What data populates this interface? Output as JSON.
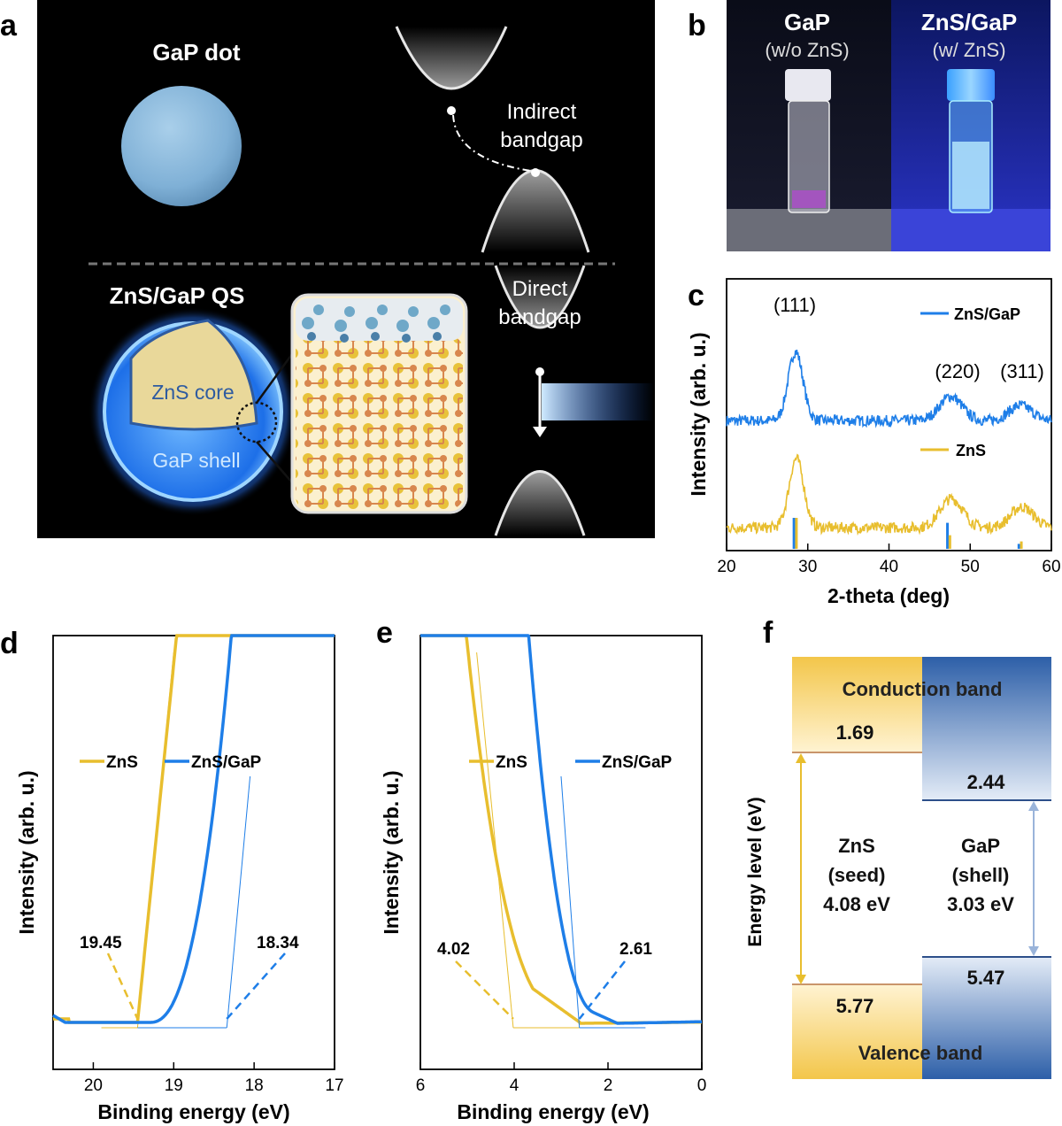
{
  "panel_labels": {
    "a": "a",
    "b": "b",
    "c": "c",
    "d": "d",
    "e": "e",
    "f": "f"
  },
  "colors": {
    "zns": "#E8BE2E",
    "gap": "#1E7EE8",
    "dark_bg": "#000000",
    "shell_glow": "#3A8CFF",
    "core_fill": "#E9D79A",
    "sphere": "#7FB4DA"
  },
  "panel_a": {
    "gap_dot_title": "GaP dot",
    "indirect_line1": "Indirect",
    "indirect_line2": "bandgap",
    "qs_title": "ZnS/GaP QS",
    "core_label": "ZnS core",
    "shell_label": "GaP shell",
    "direct_line1": "Direct",
    "direct_line2": "bandgap"
  },
  "panel_b": {
    "left_title": "GaP",
    "left_sub": "(w/o ZnS)",
    "right_title": "ZnS/GaP",
    "right_sub": "(w/ ZnS)"
  },
  "panel_c": {
    "peaks": [
      "(111)",
      "(220)",
      "(311)"
    ]
  },
  "panel_d": {
    "annot_left": "19.45",
    "annot_right": "18.34"
  },
  "panel_e": {
    "annot_left": "4.02",
    "annot_right": "2.61"
  },
  "panel_f": {
    "ylabel": "Energy level (eV)",
    "conduction": "Conduction band",
    "valence": "Valence band",
    "zns_cb": "1.69",
    "gap_cb": "2.44",
    "zns_vb": "5.77",
    "gap_vb": "5.47",
    "zns_name": "ZnS",
    "zns_role": "(seed)",
    "zns_gap": "4.08 eV",
    "gap_name": "GaP",
    "gap_role": "(shell)",
    "gap_gap": "3.03 eV"
  },
  "chart_data": [
    {
      "id": "c",
      "type": "line",
      "title": "",
      "xlabel": "2-theta (deg)",
      "ylabel": "Intensity (arb. u.)",
      "xlim": [
        20,
        60
      ],
      "xticks": [
        20,
        30,
        40,
        50,
        60
      ],
      "series": [
        {
          "name": "ZnS/GaP",
          "color": "#1E7EE8",
          "peaks": [
            [
              28.5,
              1.0
            ],
            [
              47.6,
              0.35
            ],
            [
              56.2,
              0.22
            ]
          ],
          "offset": 1.55
        },
        {
          "name": "ZnS",
          "color": "#E8BE2E",
          "peaks": [
            [
              28.6,
              1.0
            ],
            [
              47.7,
              0.42
            ],
            [
              56.4,
              0.3
            ]
          ],
          "offset": 0
        }
      ],
      "reference_bars": [
        {
          "x": 28.3,
          "h": 0.5,
          "color": "#1E7EE8"
        },
        {
          "x": 28.6,
          "h": 0.5,
          "color": "#E8BE2E"
        },
        {
          "x": 47.2,
          "h": 0.42,
          "color": "#1E7EE8"
        },
        {
          "x": 47.5,
          "h": 0.22,
          "color": "#E8BE2E"
        },
        {
          "x": 56.0,
          "h": 0.08,
          "color": "#1E7EE8"
        },
        {
          "x": 56.3,
          "h": 0.12,
          "color": "#E8BE2E"
        }
      ]
    },
    {
      "id": "d",
      "type": "line",
      "xlabel": "Binding energy (eV)",
      "ylabel": "Intensity (arb. u.)",
      "xlim": [
        20.5,
        17
      ],
      "xticks": [
        20,
        19,
        18,
        17
      ],
      "series": [
        {
          "name": "ZnS",
          "color": "#E8BE2E",
          "onset": 19.45
        },
        {
          "name": "ZnS/GaP",
          "color": "#1E7EE8",
          "onset": 18.34
        }
      ]
    },
    {
      "id": "e",
      "type": "line",
      "xlabel": "Binding energy (eV)",
      "ylabel": "Intensity (arb. u.)",
      "xlim": [
        6,
        0
      ],
      "xticks": [
        6,
        4,
        2,
        0
      ],
      "series": [
        {
          "name": "ZnS",
          "color": "#E8BE2E",
          "onset": 4.02
        },
        {
          "name": "ZnS/GaP",
          "color": "#1E7EE8",
          "onset": 2.61
        }
      ]
    }
  ]
}
